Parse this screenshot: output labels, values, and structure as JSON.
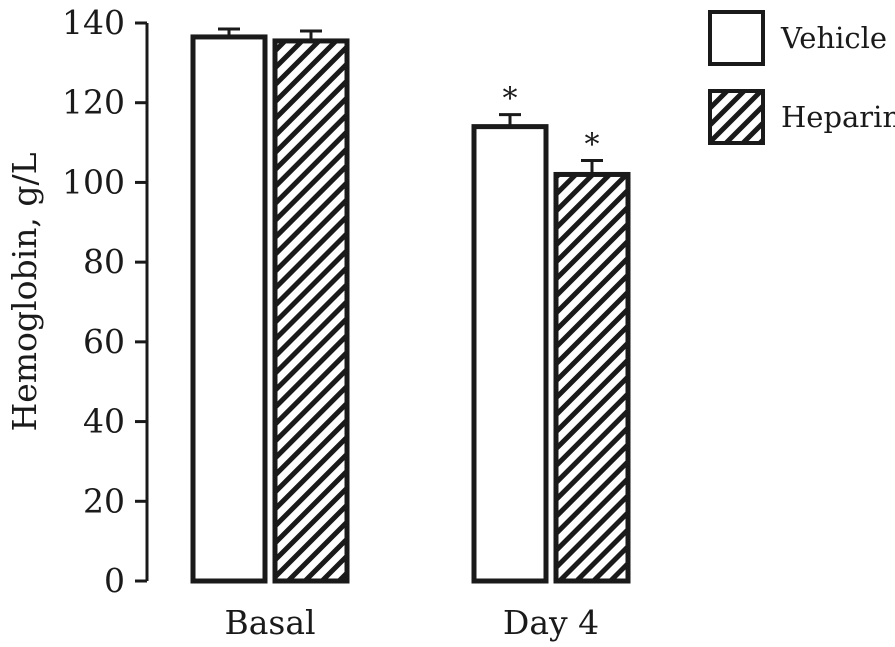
{
  "chart_data": {
    "type": "bar",
    "title": "",
    "xlabel": "",
    "ylabel": "Hemoglobin, g/L",
    "categories": [
      "Basal",
      "Day 4"
    ],
    "ylim": [
      0,
      140
    ],
    "yticks": [
      "0",
      "20",
      "40",
      "60",
      "80",
      "100",
      "120",
      "140"
    ],
    "grid": false,
    "legend_position": "top-right",
    "series": [
      {
        "name": "Vehicle",
        "pattern": "none",
        "values": [
          136.5,
          114
        ],
        "errors": [
          2,
          3
        ],
        "annotations": [
          "",
          "*"
        ]
      },
      {
        "name": "Heparin",
        "pattern": "diagonal-hatch",
        "values": [
          135.5,
          102
        ],
        "errors": [
          2.5,
          3.5
        ],
        "annotations": [
          "",
          "*"
        ]
      }
    ],
    "colors": {
      "ink": "#1a1a1a",
      "fill": "#ffffff"
    }
  }
}
